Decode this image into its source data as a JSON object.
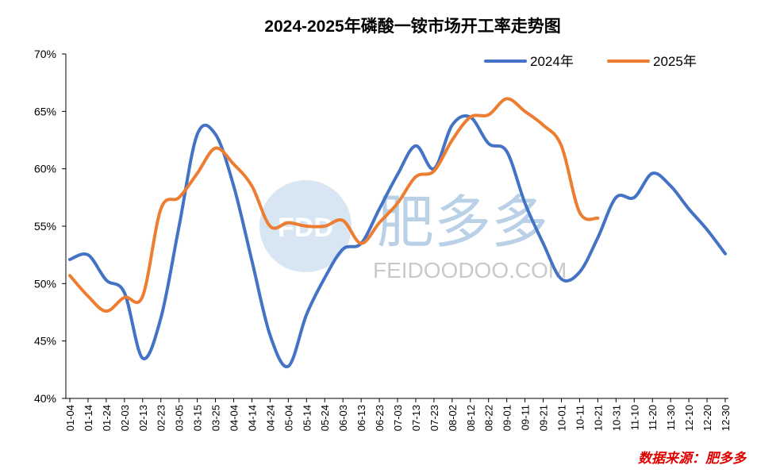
{
  "chart_data": {
    "type": "line",
    "title": "2024-2025年磷酸一铵市场开工率走势图",
    "source": "数据来源：肥多多",
    "watermark": {
      "logo": "FDD",
      "name": "肥多多",
      "site": "FEIDOODOO.COM"
    },
    "categories": [
      "01-04",
      "01-14",
      "01-24",
      "02-03",
      "02-13",
      "02-23",
      "03-05",
      "03-15",
      "03-25",
      "04-04",
      "04-14",
      "04-24",
      "05-04",
      "05-14",
      "05-24",
      "06-03",
      "06-13",
      "06-23",
      "07-03",
      "07-13",
      "07-23",
      "08-02",
      "08-12",
      "08-22",
      "09-01",
      "09-11",
      "09-21",
      "10-01",
      "10-11",
      "10-21",
      "10-31",
      "11-10",
      "11-20",
      "11-30",
      "12-10",
      "12-20",
      "12-30"
    ],
    "series": [
      {
        "name": "2024年",
        "color": "#4472c4",
        "values": [
          52.1,
          52.5,
          50.3,
          49.2,
          43.5,
          47,
          55,
          63,
          63,
          58.5,
          52,
          45.5,
          42.8,
          47.3,
          50.5,
          53,
          53.5,
          56.5,
          59.5,
          62,
          60,
          63.8,
          64.5,
          62.2,
          61.5,
          57,
          53.5,
          50.4,
          51,
          54,
          57.5,
          57.5,
          59.6,
          58.5,
          56.5,
          54.7,
          52.6
        ]
      },
      {
        "name": "2025年",
        "color": "#ed7d31",
        "values": [
          50.7,
          48.9,
          47.6,
          48.8,
          48.9,
          56.5,
          57.5,
          59.6,
          61.8,
          60.4,
          58.5,
          55,
          55.3,
          55,
          55,
          55.5,
          53.5,
          55.3,
          57,
          59.3,
          59.8,
          62.5,
          64.5,
          64.7,
          66.1,
          65,
          63.8,
          62,
          56.2,
          55.7,
          null,
          null,
          null,
          null,
          null,
          null,
          null
        ]
      }
    ],
    "ylim": [
      40,
      70
    ],
    "yticks": [
      {
        "value": 40,
        "label": "40%"
      },
      {
        "value": 45,
        "label": "45%"
      },
      {
        "value": 50,
        "label": "50%"
      },
      {
        "value": 55,
        "label": "55%"
      },
      {
        "value": 60,
        "label": "60%"
      },
      {
        "value": 65,
        "label": "65%"
      },
      {
        "value": 70,
        "label": "70%"
      }
    ],
    "legend": "top-right",
    "grid": false
  }
}
